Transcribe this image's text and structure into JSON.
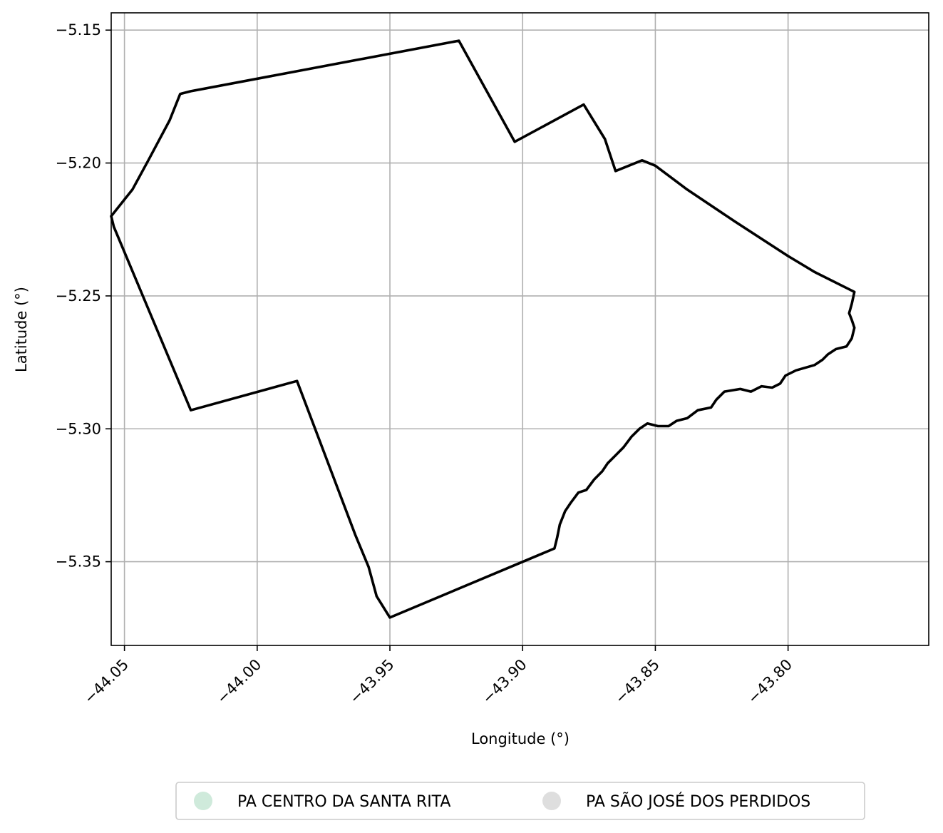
{
  "chart_data": {
    "type": "map",
    "xlabel": "Longitude (°)",
    "ylabel": "Latitude (°)",
    "xlim": [
      -44.055,
      -43.747
    ],
    "ylim": [
      -5.3815,
      -5.1435
    ],
    "grid": true,
    "x_ticks": [
      {
        "value": -44.05,
        "label": "−44.05"
      },
      {
        "value": -44.0,
        "label": "−44.00"
      },
      {
        "value": -43.95,
        "label": "−43.95"
      },
      {
        "value": -43.9,
        "label": "−43.90"
      },
      {
        "value": -43.85,
        "label": "−43.85"
      },
      {
        "value": -43.8,
        "label": "−43.80"
      }
    ],
    "y_ticks": [
      {
        "value": -5.15,
        "label": "−5.15"
      },
      {
        "value": -5.2,
        "label": "−5.20"
      },
      {
        "value": -5.25,
        "label": "−5.25"
      },
      {
        "value": -5.3,
        "label": "−5.30"
      },
      {
        "value": -5.35,
        "label": "−5.35"
      }
    ],
    "boundary": {
      "stroke_color": "#000000",
      "points": [
        [
          -44.055,
          -5.22
        ],
        [
          -44.047,
          -5.21
        ],
        [
          -44.041,
          -5.199
        ],
        [
          -44.033,
          -5.184
        ],
        [
          -44.029,
          -5.174
        ],
        [
          -44.025,
          -5.173
        ],
        [
          -43.924,
          -5.154
        ],
        [
          -43.903,
          -5.192
        ],
        [
          -43.877,
          -5.178
        ],
        [
          -43.869,
          -5.191
        ],
        [
          -43.865,
          -5.203
        ],
        [
          -43.855,
          -5.199
        ],
        [
          -43.85,
          -5.201
        ],
        [
          -43.838,
          -5.21
        ],
        [
          -43.82,
          -5.222
        ],
        [
          -43.8,
          -5.235
        ],
        [
          -43.79,
          -5.241
        ],
        [
          -43.775,
          -5.2485
        ],
        [
          -43.776,
          -5.253
        ],
        [
          -43.777,
          -5.2565
        ],
        [
          -43.776,
          -5.259
        ],
        [
          -43.775,
          -5.262
        ],
        [
          -43.776,
          -5.266
        ],
        [
          -43.778,
          -5.269
        ],
        [
          -43.782,
          -5.27
        ],
        [
          -43.785,
          -5.272
        ],
        [
          -43.787,
          -5.274
        ],
        [
          -43.79,
          -5.276
        ],
        [
          -43.797,
          -5.278
        ],
        [
          -43.801,
          -5.28
        ],
        [
          -43.803,
          -5.283
        ],
        [
          -43.806,
          -5.2845
        ],
        [
          -43.81,
          -5.284
        ],
        [
          -43.814,
          -5.286
        ],
        [
          -43.818,
          -5.285
        ],
        [
          -43.824,
          -5.286
        ],
        [
          -43.827,
          -5.289
        ],
        [
          -43.829,
          -5.292
        ],
        [
          -43.834,
          -5.293
        ],
        [
          -43.838,
          -5.296
        ],
        [
          -43.842,
          -5.297
        ],
        [
          -43.845,
          -5.299
        ],
        [
          -43.849,
          -5.299
        ],
        [
          -43.853,
          -5.298
        ],
        [
          -43.856,
          -5.3
        ],
        [
          -43.859,
          -5.303
        ],
        [
          -43.862,
          -5.307
        ],
        [
          -43.865,
          -5.31
        ],
        [
          -43.868,
          -5.313
        ],
        [
          -43.87,
          -5.316
        ],
        [
          -43.873,
          -5.319
        ],
        [
          -43.876,
          -5.323
        ],
        [
          -43.879,
          -5.324
        ],
        [
          -43.882,
          -5.328
        ],
        [
          -43.884,
          -5.331
        ],
        [
          -43.886,
          -5.336
        ],
        [
          -43.887,
          -5.341
        ],
        [
          -43.888,
          -5.345
        ],
        [
          -43.95,
          -5.371
        ],
        [
          -43.955,
          -5.363
        ],
        [
          -43.958,
          -5.352
        ],
        [
          -43.963,
          -5.34
        ],
        [
          -43.985,
          -5.282
        ],
        [
          -44.025,
          -5.293
        ],
        [
          -44.054,
          -5.224
        ],
        [
          -44.055,
          -5.22
        ]
      ]
    },
    "legend": {
      "placement": "bottom-center",
      "entries": [
        {
          "label": "PA CENTRO DA SANTA RITA",
          "color": "#cfeadb"
        },
        {
          "label": "PA SÃO JOSÉ DOS PERDIDOS",
          "color": "#dedede"
        }
      ]
    }
  }
}
